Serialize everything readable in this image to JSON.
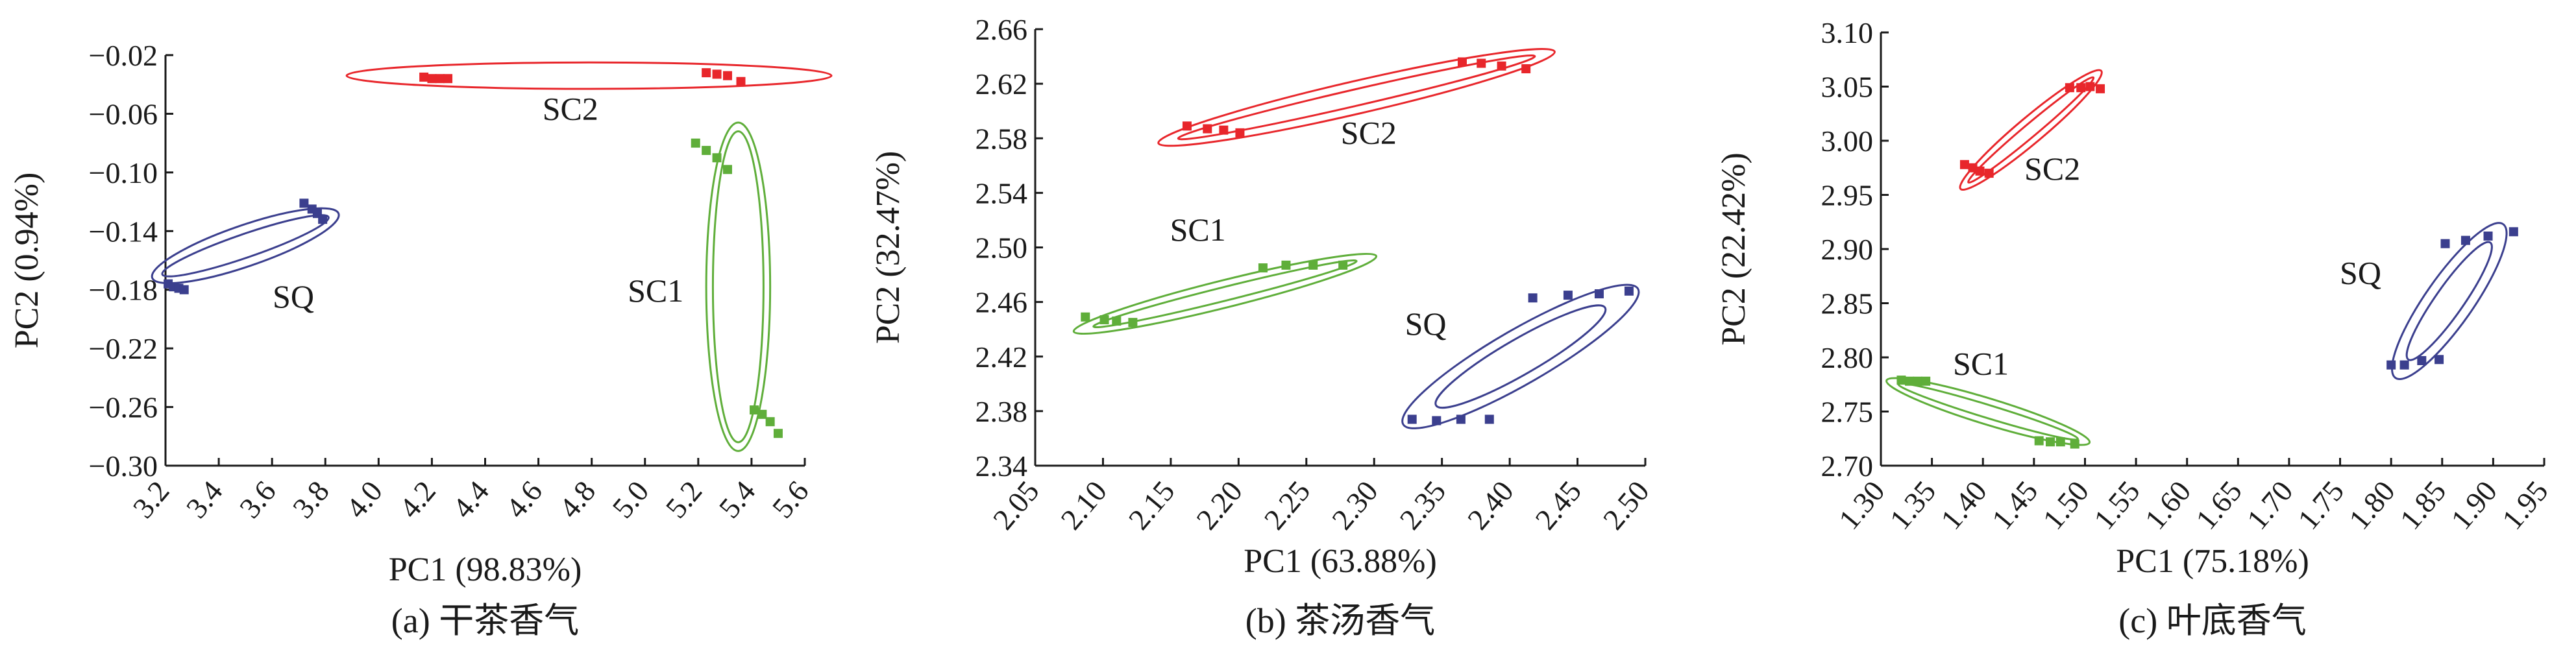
{
  "panels": [
    {
      "caption": "(a) 干茶香气",
      "chart_data": {
        "type": "scatter",
        "title": "",
        "xlabel": "PC1 (98.83%)",
        "ylabel": "PC2 (0.94%)",
        "xlim": [
          3.2,
          5.6
        ],
        "ylim": [
          -0.3,
          -0.02
        ],
        "x_ticks": [
          "3.2",
          "3.4",
          "3.6",
          "3.8",
          "4.0",
          "4.2",
          "4.4",
          "4.6",
          "4.8",
          "5.0",
          "5.2",
          "5.4",
          "5.6"
        ],
        "y_ticks": [
          "−0.02",
          "−0.06",
          "−0.10",
          "−0.14",
          "−0.18",
          "−0.22",
          "−0.26",
          "−0.30"
        ],
        "grid": false,
        "series": [
          {
            "name": "SC2",
            "color": "#e8262b",
            "points": [
              [
                4.17,
                -0.035
              ],
              [
                4.2,
                -0.036
              ],
              [
                4.23,
                -0.036
              ],
              [
                4.26,
                -0.036
              ],
              [
                5.23,
                -0.032
              ],
              [
                5.27,
                -0.033
              ],
              [
                5.31,
                -0.034
              ],
              [
                5.36,
                -0.038
              ]
            ],
            "ellipses": [
              {
                "cx": 4.79,
                "cy": -0.034,
                "rx": 0.91,
                "ry": 0.009,
                "angle": 0
              }
            ],
            "label_pos": [
              4.72,
              -0.064
            ]
          },
          {
            "name": "SQ",
            "color": "#3b3f8e",
            "points": [
              [
                3.21,
                -0.176
              ],
              [
                3.23,
                -0.178
              ],
              [
                3.25,
                -0.179
              ],
              [
                3.27,
                -0.18
              ],
              [
                3.72,
                -0.121
              ],
              [
                3.75,
                -0.125
              ],
              [
                3.77,
                -0.128
              ],
              [
                3.79,
                -0.132
              ]
            ],
            "ellipses": [
              {
                "cx": 3.5,
                "cy": -0.15,
                "rx": 0.37,
                "ry": 0.014,
                "angle": -19
              },
              {
                "cx": 3.5,
                "cy": -0.15,
                "rx": 0.33,
                "ry": 0.008,
                "angle": -19
              }
            ],
            "label_pos": [
              3.68,
              -0.192
            ]
          },
          {
            "name": "SC1",
            "color": "#5fae3a",
            "points": [
              [
                5.19,
                -0.08
              ],
              [
                5.23,
                -0.085
              ],
              [
                5.27,
                -0.09
              ],
              [
                5.31,
                -0.098
              ],
              [
                5.41,
                -0.262
              ],
              [
                5.44,
                -0.265
              ],
              [
                5.47,
                -0.27
              ],
              [
                5.5,
                -0.278
              ]
            ],
            "ellipses": [
              {
                "cx": 5.35,
                "cy": -0.178,
                "rx": 0.12,
                "ry": 0.112,
                "angle": 0
              },
              {
                "cx": 5.35,
                "cy": -0.178,
                "rx": 0.095,
                "ry": 0.106,
                "angle": 0
              }
            ],
            "label_pos": [
              5.04,
              -0.188
            ]
          }
        ]
      }
    },
    {
      "caption": "(b) 茶汤香气",
      "chart_data": {
        "type": "scatter",
        "title": "",
        "xlabel": "PC1 (63.88%)",
        "ylabel": "PC2 (32.47%)",
        "xlim": [
          2.05,
          2.5
        ],
        "ylim": [
          2.34,
          2.66
        ],
        "x_ticks": [
          "2.05",
          "2.10",
          "2.15",
          "2.20",
          "2.25",
          "2.30",
          "2.35",
          "2.40",
          "2.45",
          "2.50"
        ],
        "y_ticks": [
          "2.66",
          "2.62",
          "2.58",
          "2.54",
          "2.50",
          "2.46",
          "2.42",
          "2.38",
          "2.34"
        ],
        "grid": false,
        "series": [
          {
            "name": "SC2",
            "color": "#e8262b",
            "points": [
              [
                2.162,
                2.589
              ],
              [
                2.177,
                2.587
              ],
              [
                2.189,
                2.586
              ],
              [
                2.201,
                2.584
              ],
              [
                2.365,
                2.636
              ],
              [
                2.379,
                2.635
              ],
              [
                2.394,
                2.633
              ],
              [
                2.412,
                2.631
              ]
            ],
            "ellipses": [
              {
                "cx": 2.287,
                "cy": 2.61,
                "rx": 0.15,
                "ry": 0.012,
                "angle": -13
              },
              {
                "cx": 2.287,
                "cy": 2.61,
                "rx": 0.135,
                "ry": 0.006,
                "angle": -13
              }
            ],
            "label_pos": [
              2.296,
              2.576
            ]
          },
          {
            "name": "SC1",
            "color": "#5fae3a",
            "points": [
              [
                2.087,
                2.449
              ],
              [
                2.101,
                2.447
              ],
              [
                2.11,
                2.446
              ],
              [
                2.122,
                2.445
              ],
              [
                2.218,
                2.485
              ],
              [
                2.235,
                2.487
              ],
              [
                2.255,
                2.487
              ],
              [
                2.277,
                2.487
              ]
            ],
            "ellipses": [
              {
                "cx": 2.19,
                "cy": 2.466,
                "rx": 0.115,
                "ry": 0.01,
                "angle": -14
              },
              {
                "cx": 2.19,
                "cy": 2.466,
                "rx": 0.1,
                "ry": 0.005,
                "angle": -14
              }
            ],
            "label_pos": [
              2.17,
              2.505
            ]
          },
          {
            "name": "SQ",
            "color": "#3b3f8e",
            "points": [
              [
                2.328,
                2.374
              ],
              [
                2.346,
                2.373
              ],
              [
                2.364,
                2.374
              ],
              [
                2.385,
                2.374
              ],
              [
                2.417,
                2.463
              ],
              [
                2.443,
                2.465
              ],
              [
                2.466,
                2.466
              ],
              [
                2.488,
                2.468
              ]
            ],
            "ellipses": [
              {
                "cx": 2.408,
                "cy": 2.42,
                "rx": 0.1,
                "ry": 0.02,
                "angle": -30
              },
              {
                "cx": 2.408,
                "cy": 2.42,
                "rx": 0.072,
                "ry": 0.013,
                "angle": -30
              }
            ],
            "label_pos": [
              2.338,
              2.436
            ]
          }
        ]
      }
    },
    {
      "caption": "(c) 叶底香气",
      "chart_data": {
        "type": "scatter",
        "title": "",
        "xlabel": "PC1 (75.18%)",
        "ylabel": "PC2 (22.42%)",
        "xlim": [
          1.3,
          1.95
        ],
        "ylim": [
          2.7,
          3.1
        ],
        "x_ticks": [
          "1.30",
          "1.35",
          "1.40",
          "1.45",
          "1.50",
          "1.55",
          "1.60",
          "1.65",
          "1.70",
          "1.75",
          "1.80",
          "1.85",
          "1.90",
          "1.95"
        ],
        "y_ticks": [
          "3.10",
          "3.05",
          "3.00",
          "2.95",
          "2.90",
          "2.85",
          "2.80",
          "2.75",
          "2.70"
        ],
        "grid": false,
        "series": [
          {
            "name": "SC2",
            "color": "#e8262b",
            "points": [
              [
                1.382,
                2.978
              ],
              [
                1.39,
                2.975
              ],
              [
                1.397,
                2.972
              ],
              [
                1.406,
                2.97
              ],
              [
                1.485,
                3.049
              ],
              [
                1.496,
                3.049
              ],
              [
                1.505,
                3.05
              ],
              [
                1.515,
                3.048
              ]
            ],
            "ellipses": [
              {
                "cx": 1.447,
                "cy": 3.01,
                "rx": 0.09,
                "ry": 0.012,
                "angle": -40
              },
              {
                "cx": 1.447,
                "cy": 3.01,
                "rx": 0.08,
                "ry": 0.006,
                "angle": -40
              }
            ],
            "label_pos": [
              1.468,
              2.964
            ]
          },
          {
            "name": "SQ",
            "color": "#3b3f8e",
            "points": [
              [
                1.8,
                2.793
              ],
              [
                1.813,
                2.793
              ],
              [
                1.83,
                2.797
              ],
              [
                1.847,
                2.798
              ],
              [
                1.853,
                2.905
              ],
              [
                1.873,
                2.908
              ],
              [
                1.895,
                2.912
              ],
              [
                1.92,
                2.916
              ]
            ],
            "ellipses": [
              {
                "cx": 1.857,
                "cy": 2.852,
                "rx": 0.092,
                "ry": 0.022,
                "angle": -55
              },
              {
                "cx": 1.857,
                "cy": 2.852,
                "rx": 0.07,
                "ry": 0.013,
                "angle": -55
              }
            ],
            "label_pos": [
              1.77,
              2.868
            ]
          },
          {
            "name": "SC1",
            "color": "#5fae3a",
            "points": [
              [
                1.32,
                2.779
              ],
              [
                1.328,
                2.778
              ],
              [
                1.336,
                2.778
              ],
              [
                1.344,
                2.778
              ],
              [
                1.455,
                2.723
              ],
              [
                1.466,
                2.722
              ],
              [
                1.476,
                2.722
              ],
              [
                1.49,
                2.72
              ]
            ],
            "ellipses": [
              {
                "cx": 1.405,
                "cy": 2.75,
                "rx": 0.104,
                "ry": 0.012,
                "angle": 17
              },
              {
                "cx": 1.405,
                "cy": 2.75,
                "rx": 0.092,
                "ry": 0.006,
                "angle": 17
              }
            ],
            "label_pos": [
              1.398,
              2.784
            ]
          }
        ]
      }
    }
  ]
}
